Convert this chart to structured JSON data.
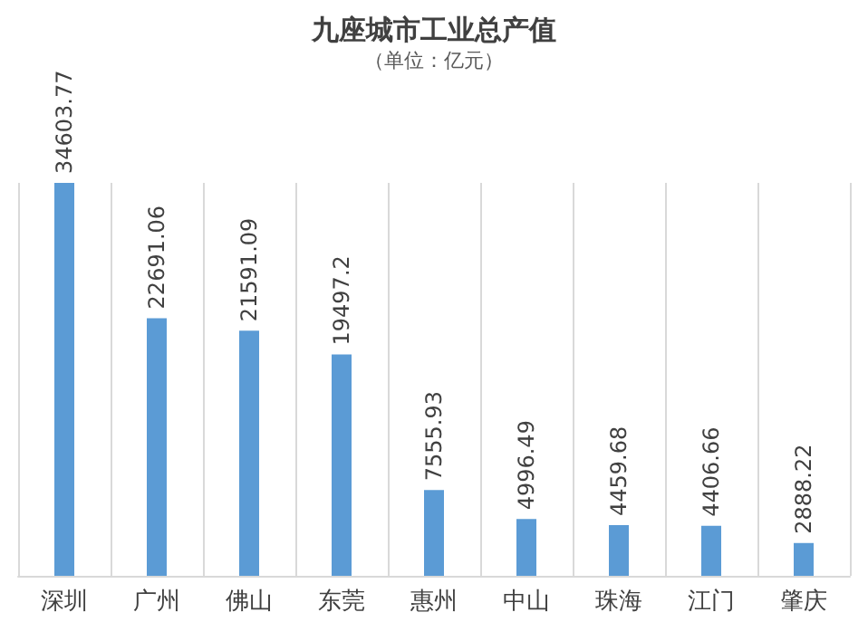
{
  "chart_data": {
    "type": "bar",
    "title": "九座城市工业总产值",
    "subtitle": "（单位：亿元）",
    "categories": [
      "深圳",
      "广州",
      "佛山",
      "东莞",
      "惠州",
      "中山",
      "珠海",
      "江门",
      "肇庆"
    ],
    "values": [
      34603.77,
      22691.06,
      21591.09,
      19497.2,
      7555.93,
      4996.49,
      4459.68,
      4406.66,
      2888.22
    ],
    "color": "#5b9bd5",
    "data_labels": true,
    "grid": "x"
  }
}
